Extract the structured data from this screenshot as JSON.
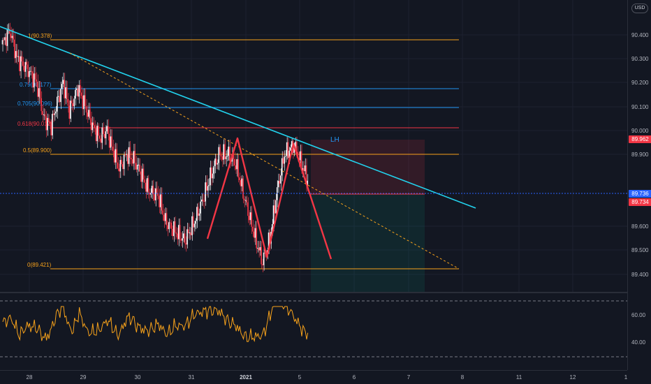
{
  "currency": "USD",
  "price_axis": {
    "ticks": [
      "90.400",
      "90.300",
      "90.200",
      "90.100",
      "90.000",
      "89.900",
      "89.600",
      "89.500",
      "89.400"
    ],
    "tags": [
      {
        "text": "89.962",
        "color": "#f23645"
      },
      {
        "text": "89.736",
        "color": "#2962ff"
      },
      {
        "text": "89.734",
        "color": "#f23645"
      }
    ]
  },
  "rsi_axis": {
    "ticks": [
      "60.00",
      "40.00"
    ]
  },
  "fib_levels": [
    {
      "label": "1(90.378)",
      "color": "#f7a21b"
    },
    {
      "label": "0.79(90.177)",
      "color": "#2196f3"
    },
    {
      "label": "0.705(90.096)",
      "color": "#2196f3"
    },
    {
      "label": "0.618(90.012)",
      "color": "#f23645"
    },
    {
      "label": "0.5(89.900)",
      "color": "#f7a21b"
    },
    {
      "label": "0(89.421)",
      "color": "#f7a21b"
    }
  ],
  "annotation": {
    "text": "LH",
    "color": "#2196f3"
  },
  "time_axis": {
    "labels": [
      {
        "text": "28",
        "bold": false
      },
      {
        "text": "29",
        "bold": false
      },
      {
        "text": "30",
        "bold": false
      },
      {
        "text": "31",
        "bold": false
      },
      {
        "text": "2021",
        "bold": true
      },
      {
        "text": "5",
        "bold": false
      },
      {
        "text": "6",
        "bold": false
      },
      {
        "text": "7",
        "bold": false
      },
      {
        "text": "8",
        "bold": false
      },
      {
        "text": "11",
        "bold": false
      },
      {
        "text": "12",
        "bold": false
      },
      {
        "text": "1",
        "bold": false
      }
    ]
  },
  "colors": {
    "background": "#131722",
    "up_candle": "#f6f7fa",
    "down_candle": "#f23645",
    "trendline": "#22d3ee",
    "pattern": "#f23645",
    "rsi_line": "#f7a21b",
    "last_price_line": "#2962ff"
  }
}
